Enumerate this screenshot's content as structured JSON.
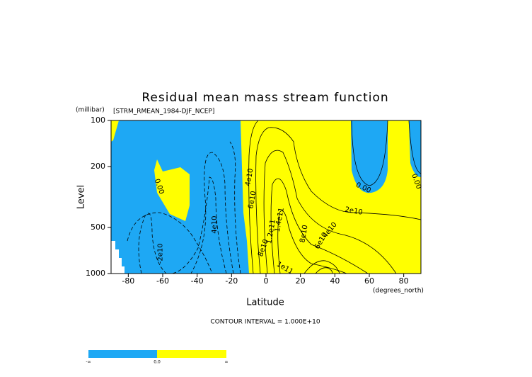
{
  "chart_data": {
    "type": "contour",
    "title": "Residual mean mass stream function",
    "subtitle": "[STRM_RMEAN_1984-DJF_NCEP]",
    "x_label": "Latitude",
    "x_unit": "(degrees_north)",
    "y_label": "Level",
    "y_unit": "(millibar)",
    "xlim": [
      -90,
      90
    ],
    "xticks": [
      -80,
      -60,
      -40,
      -20,
      0,
      20,
      40,
      60,
      80
    ],
    "ylim": [
      1000,
      100
    ],
    "yticks": [
      100,
      200,
      500,
      1000
    ],
    "y_log": true,
    "negative_color": "#1ea8f4",
    "positive_color": "#ffff00",
    "contour_interval": "CONTOUR INTERVAL = 1.000E+10",
    "colorbar_labels": [
      "-∞",
      "0.0",
      "∞"
    ],
    "contour_labels": [
      {
        "text": "0.00",
        "x": -62,
        "y": 270
      },
      {
        "text": "-2e10",
        "x": -61.5,
        "y": 740
      },
      {
        "text": "4e10",
        "x": -30,
        "y": 480
      },
      {
        "text": "4e10",
        "x": -9.7,
        "y": 235
      },
      {
        "text": "6e10",
        "x": -8,
        "y": 330
      },
      {
        "text": "1.4e11",
        "x": 7.8,
        "y": 445
      },
      {
        "text": "1.2e11",
        "x": 2.9,
        "y": 532
      },
      {
        "text": "8e10",
        "x": -1.6,
        "y": 680
      },
      {
        "text": "1e11",
        "x": 11,
        "y": 920
      },
      {
        "text": "8e10",
        "x": 22,
        "y": 550
      },
      {
        "text": "6e10",
        "x": 32,
        "y": 610
      },
      {
        "text": "4e10",
        "x": 37,
        "y": 520
      },
      {
        "text": "2e10",
        "x": 51,
        "y": 390
      },
      {
        "text": "0.00",
        "x": 56.6,
        "y": 275
      },
      {
        "text": "0.00",
        "x": 87.4,
        "y": 250
      }
    ]
  }
}
